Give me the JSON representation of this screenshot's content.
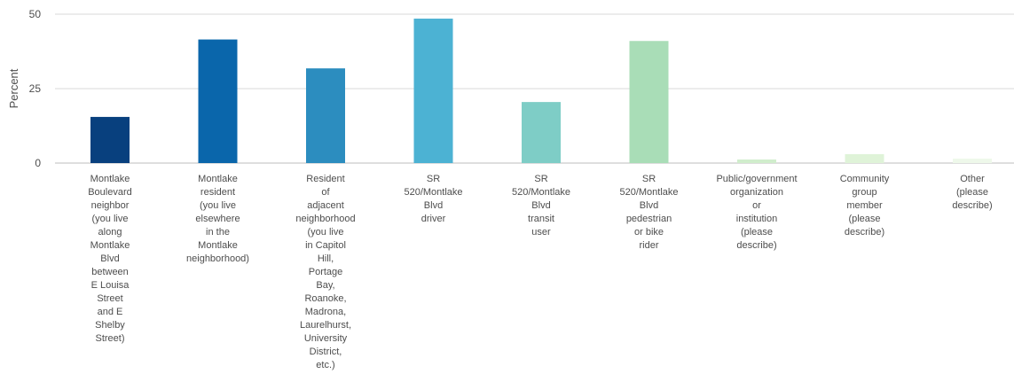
{
  "chart_data": {
    "type": "bar",
    "title": "",
    "xlabel": "",
    "ylabel": "Percent",
    "ylim": [
      0,
      50
    ],
    "yticks": [
      0,
      25,
      50
    ],
    "grid": true,
    "categories": [
      [
        "Montlake",
        "Boulevard",
        "neighbor",
        "(you live",
        "along",
        "Montlake",
        "Blvd",
        "between",
        "E Louisa",
        "Street",
        "and E",
        "Shelby",
        "Street)"
      ],
      [
        "Montlake",
        "resident",
        "(you live",
        "elsewhere",
        "in the",
        "Montlake",
        "neighborhood)"
      ],
      [
        "Resident",
        "of",
        "adjacent",
        "neighborhood",
        "(you live",
        "in Capitol",
        "Hill,",
        "Portage",
        "Bay,",
        "Roanoke,",
        "Madrona,",
        "Laurelhurst,",
        "University",
        "District,",
        "etc.)"
      ],
      [
        "SR",
        "520/Montlake",
        "Blvd",
        "driver"
      ],
      [
        "SR",
        "520/Montlake",
        "Blvd",
        "transit",
        "user"
      ],
      [
        "SR",
        "520/Montlake",
        "Blvd",
        "pedestrian",
        "or bike",
        "rider"
      ],
      [
        "Public/government",
        "organization",
        "or",
        "institution",
        "(please",
        "describe)"
      ],
      [
        "Community",
        "group",
        "member",
        "(please",
        "describe)"
      ],
      [
        "Other",
        "(please",
        "describe)"
      ]
    ],
    "values": [
      15.5,
      41.5,
      31.8,
      48.5,
      20.5,
      41.0,
      1.2,
      3.0,
      1.5
    ],
    "colors": [
      "#08407e",
      "#0a66ab",
      "#2c8dbf",
      "#4cb2d3",
      "#7ecdc6",
      "#a9ddb7",
      "#d0edcc",
      "#dff3d8",
      "#eef8ea"
    ]
  }
}
